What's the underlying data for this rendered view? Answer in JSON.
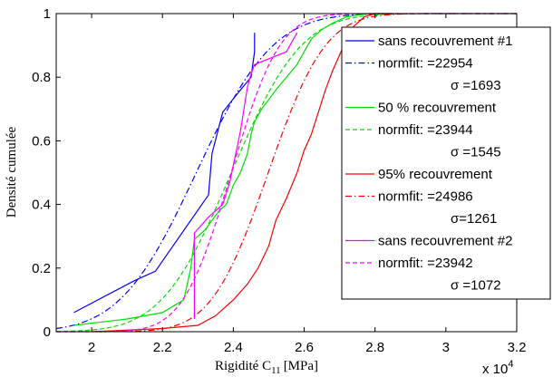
{
  "chart_data": {
    "type": "line",
    "title": "",
    "xlabel": "Rigidité C",
    "xlabel_sub": "11",
    "xlabel_unit": "[MPa]",
    "ylabel": "Densité cumulée",
    "x_multiplier": "x 10",
    "x_multiplier_exp": "4",
    "xlim": [
      1.9,
      3.2
    ],
    "ylim": [
      0,
      1
    ],
    "xticks": [
      2,
      2.2,
      2.4,
      2.6,
      2.8,
      3,
      3.2
    ],
    "yticks": [
      0,
      0.2,
      0.4,
      0.6,
      0.8,
      1
    ],
    "grid": false,
    "legend_position": "top-right",
    "series": [
      {
        "name": "sans recouvrement #1",
        "color": "#0000ff",
        "style": "solid",
        "x": [
          1.95,
          2.12,
          2.18,
          2.33,
          2.34,
          2.37,
          2.42,
          2.45,
          2.46,
          2.46
        ],
        "y": [
          0.06,
          0.16,
          0.19,
          0.43,
          0.56,
          0.69,
          0.76,
          0.8,
          0.88,
          0.94
        ]
      },
      {
        "name": "normfit:   =22954",
        "label_line2": "σ =1693",
        "color": "#0000ff",
        "style": "dashdot",
        "mean": 2.2954,
        "sigma": 0.1693
      },
      {
        "name": "50 % recouvrement",
        "color": "#00dd00",
        "style": "solid",
        "x": [
          1.95,
          2.1,
          2.2,
          2.26,
          2.28,
          2.29,
          2.32,
          2.34,
          2.36,
          2.38,
          2.4,
          2.42,
          2.44,
          2.45,
          2.46,
          2.48,
          2.5,
          2.52,
          2.55,
          2.58,
          2.6,
          2.62,
          2.65,
          2.68,
          2.72,
          2.78,
          2.85
        ],
        "y": [
          0.02,
          0.04,
          0.06,
          0.1,
          0.2,
          0.29,
          0.32,
          0.35,
          0.38,
          0.4,
          0.46,
          0.5,
          0.56,
          0.62,
          0.66,
          0.7,
          0.73,
          0.76,
          0.8,
          0.84,
          0.88,
          0.92,
          0.95,
          0.97,
          0.99,
          1.0,
          1.0
        ]
      },
      {
        "name": "normfit:   =23944",
        "label_line2": "σ =1545",
        "color": "#00dd00",
        "style": "dashed",
        "mean": 2.3944,
        "sigma": 0.1545
      },
      {
        "name": "95% recouvrement",
        "color": "#ff0000",
        "style": "solid",
        "x": [
          2.0,
          2.2,
          2.3,
          2.35,
          2.4,
          2.44,
          2.47,
          2.5,
          2.52,
          2.55,
          2.58,
          2.6,
          2.62,
          2.64,
          2.66,
          2.68,
          2.7,
          2.72,
          2.74,
          2.77,
          2.8,
          2.85
        ],
        "y": [
          0.0,
          0.01,
          0.02,
          0.05,
          0.1,
          0.15,
          0.2,
          0.27,
          0.35,
          0.42,
          0.5,
          0.57,
          0.62,
          0.69,
          0.76,
          0.82,
          0.87,
          0.92,
          0.96,
          0.99,
          1.0,
          1.0
        ]
      },
      {
        "name": "normfit:   =24986",
        "label_line2": "σ=1261",
        "color": "#ff0000",
        "style": "dashdot",
        "mean": 2.4986,
        "sigma": 0.1261
      },
      {
        "name": "sans recouvrement #2",
        "color": "#ff00ff",
        "style": "solid",
        "x": [
          2.29,
          2.29,
          2.33,
          2.37,
          2.39,
          2.42,
          2.44,
          2.45,
          2.46,
          2.55,
          2.58
        ],
        "y": [
          0.04,
          0.31,
          0.36,
          0.4,
          0.47,
          0.63,
          0.77,
          0.81,
          0.84,
          0.88,
          0.94
        ]
      },
      {
        "name": "normfit:   =23942",
        "label_line2": "σ =1072",
        "color": "#ff00ff",
        "style": "dashed",
        "mean": 2.3942,
        "sigma": 0.1072
      }
    ]
  }
}
